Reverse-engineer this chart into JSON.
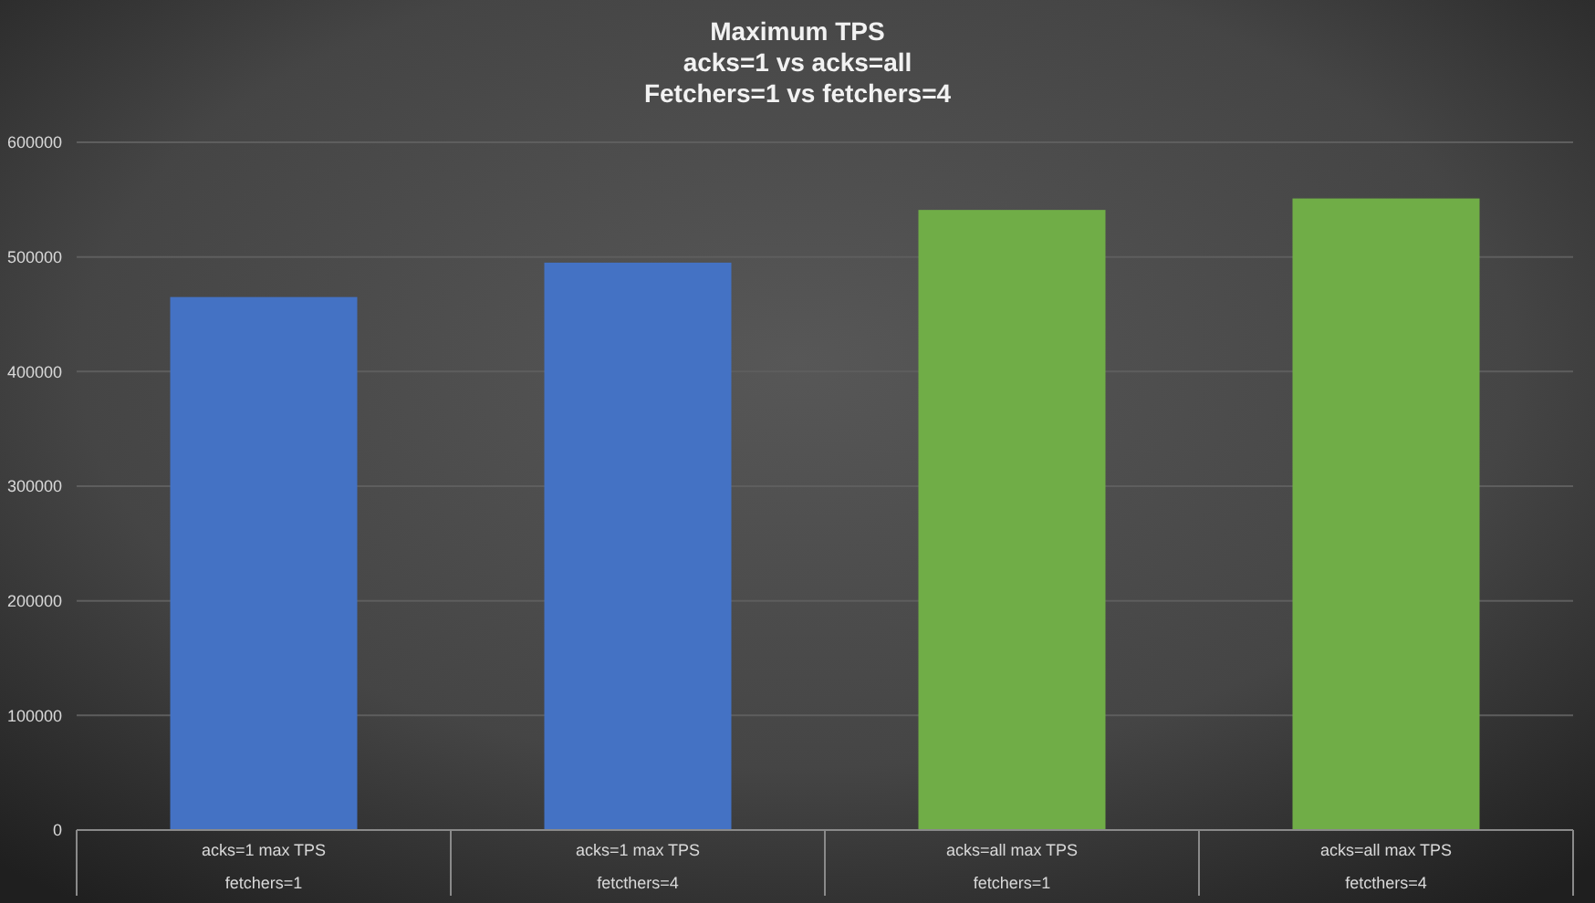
{
  "chart_data": {
    "type": "bar",
    "title": "Maximum TPS\nacks=1 vs acks=all\nFetchers=1 vs fetchers=4",
    "categories": [
      "acks=1 max TPS\nfetchers=1",
      "acks=1 max TPS\nfetcthers=4",
      "acks=all max TPS\nfetchers=1",
      "acks=all max TPS\nfetcthers=4"
    ],
    "values": [
      465000,
      495000,
      541000,
      551000
    ],
    "colors": [
      "#4472c4",
      "#4472c4",
      "#70ad47",
      "#70ad47"
    ],
    "ylim": [
      0,
      600000
    ],
    "yticks": [
      0,
      100000,
      200000,
      300000,
      400000,
      500000,
      600000
    ],
    "grid": "y"
  }
}
